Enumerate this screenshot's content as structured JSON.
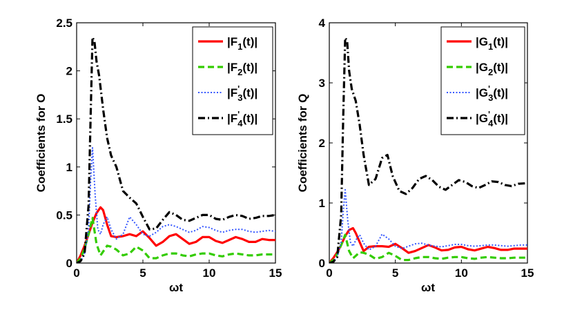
{
  "chart_data": [
    {
      "type": "line",
      "xlabel": "ωt",
      "ylabel": "Coefficients for O",
      "xlim": [
        0,
        15
      ],
      "ylim": [
        0,
        2.5
      ],
      "xticks": [
        0,
        5,
        10,
        15
      ],
      "xtick_labels": [
        "0",
        "5",
        "10",
        "15"
      ],
      "yticks": [
        0,
        0.5,
        1,
        1.5,
        2,
        2.5
      ],
      "ytick_labels": [
        "0",
        "0.5",
        "1",
        "1.5",
        "2",
        "2.5"
      ],
      "grid": false,
      "legend_position": "top-right",
      "series": [
        {
          "name": "|F1(t)|",
          "legend": {
            "base": "|F",
            "sub": "1",
            "sup": "",
            "tail": "(t)|"
          },
          "color": "#ff0000",
          "style": "solid",
          "x": [
            0,
            0.3,
            0.6,
            0.9,
            1.2,
            1.5,
            1.8,
            2.0,
            2.3,
            2.6,
            3.0,
            3.5,
            4.0,
            4.5,
            5.0,
            5.5,
            6.0,
            6.5,
            7.0,
            7.5,
            8.0,
            8.5,
            9.0,
            9.5,
            10.0,
            10.5,
            11.0,
            11.5,
            12.0,
            12.5,
            13.0,
            13.5,
            14.0,
            14.5,
            15.0
          ],
          "values": [
            0,
            0.08,
            0.18,
            0.3,
            0.42,
            0.52,
            0.58,
            0.55,
            0.4,
            0.28,
            0.27,
            0.28,
            0.3,
            0.28,
            0.33,
            0.26,
            0.18,
            0.22,
            0.28,
            0.3,
            0.25,
            0.2,
            0.22,
            0.27,
            0.27,
            0.23,
            0.21,
            0.24,
            0.27,
            0.25,
            0.22,
            0.22,
            0.25,
            0.24,
            0.24
          ]
        },
        {
          "name": "|F2(t)|",
          "legend": {
            "base": "|F",
            "sub": "2",
            "sup": "",
            "tail": "(t)|"
          },
          "color": "#33cc00",
          "style": "dashed",
          "x": [
            0,
            0.3,
            0.6,
            0.9,
            1.2,
            1.5,
            1.8,
            2.0,
            2.3,
            2.6,
            3.0,
            3.5,
            4.0,
            4.5,
            5.0,
            5.5,
            6.0,
            6.5,
            7.0,
            7.5,
            8.0,
            8.5,
            9.0,
            9.5,
            10.0,
            10.5,
            11.0,
            11.5,
            12.0,
            12.5,
            13.0,
            13.5,
            14.0,
            14.5,
            15.0
          ],
          "values": [
            0,
            0.05,
            0.15,
            0.3,
            0.47,
            0.2,
            0.08,
            0.12,
            0.18,
            0.17,
            0.14,
            0.08,
            0.1,
            0.17,
            0.13,
            0.05,
            0.05,
            0.08,
            0.1,
            0.1,
            0.08,
            0.07,
            0.09,
            0.1,
            0.1,
            0.08,
            0.07,
            0.09,
            0.1,
            0.09,
            0.08,
            0.08,
            0.09,
            0.09,
            0.09
          ]
        },
        {
          "name": "|F'3(t)|",
          "legend": {
            "base": "|F",
            "sub": "3",
            "sup": "'",
            "tail": "(t)|"
          },
          "color": "#3355ff",
          "style": "dotted",
          "x": [
            0,
            0.3,
            0.6,
            0.9,
            1.05,
            1.2,
            1.4,
            1.6,
            1.8,
            2.0,
            2.3,
            2.6,
            3.0,
            3.5,
            4.0,
            4.5,
            5.0,
            5.5,
            6.0,
            6.5,
            7.0,
            7.5,
            8.0,
            8.5,
            9.0,
            9.5,
            10.0,
            10.5,
            11.0,
            11.5,
            12.0,
            12.5,
            13.0,
            13.5,
            14.0,
            14.5,
            15.0
          ],
          "values": [
            0,
            0.02,
            0.1,
            0.35,
            0.85,
            1.2,
            0.7,
            0.35,
            0.3,
            0.4,
            0.48,
            0.35,
            0.25,
            0.3,
            0.48,
            0.4,
            0.3,
            0.28,
            0.32,
            0.38,
            0.4,
            0.38,
            0.35,
            0.32,
            0.34,
            0.38,
            0.37,
            0.34,
            0.32,
            0.34,
            0.35,
            0.35,
            0.33,
            0.32,
            0.33,
            0.34,
            0.33
          ]
        },
        {
          "name": "|F'4(t)|",
          "legend": {
            "base": "|F",
            "sub": "4",
            "sup": "'",
            "tail": "(t)|"
          },
          "color": "#000000",
          "style": "dashdot",
          "x": [
            0,
            0.3,
            0.6,
            0.9,
            1.05,
            1.2,
            1.35,
            1.5,
            1.7,
            2.0,
            2.3,
            2.6,
            3.0,
            3.5,
            4.0,
            4.5,
            5.0,
            5.5,
            6.0,
            6.5,
            7.0,
            7.5,
            8.0,
            8.5,
            9.0,
            9.5,
            10.0,
            10.5,
            11.0,
            11.5,
            12.0,
            12.5,
            13.0,
            13.5,
            14.0,
            14.5,
            15.0
          ],
          "values": [
            0,
            0.02,
            0.1,
            0.6,
            1.5,
            2.35,
            2.3,
            2.1,
            1.95,
            1.6,
            1.3,
            1.12,
            1.0,
            0.75,
            0.68,
            0.62,
            0.48,
            0.35,
            0.36,
            0.45,
            0.53,
            0.5,
            0.45,
            0.44,
            0.47,
            0.5,
            0.5,
            0.46,
            0.45,
            0.48,
            0.5,
            0.49,
            0.46,
            0.47,
            0.49,
            0.49,
            0.5
          ]
        }
      ]
    },
    {
      "type": "line",
      "xlabel": "ωt",
      "ylabel": "Coefficients for Q",
      "xlim": [
        0,
        15
      ],
      "ylim": [
        0,
        4
      ],
      "xticks": [
        0,
        5,
        10,
        15
      ],
      "xtick_labels": [
        "0",
        "5",
        "10",
        "15"
      ],
      "yticks": [
        0,
        1,
        2,
        3,
        4
      ],
      "ytick_labels": [
        "0",
        "1",
        "2",
        "3",
        "4"
      ],
      "grid": false,
      "legend_position": "top-right",
      "series": [
        {
          "name": "|G1(t)|",
          "legend": {
            "base": "|G",
            "sub": "1",
            "sup": "",
            "tail": "(t)|"
          },
          "color": "#ff0000",
          "style": "solid",
          "x": [
            0,
            0.3,
            0.6,
            0.9,
            1.2,
            1.5,
            1.8,
            2.0,
            2.3,
            2.6,
            3.0,
            3.5,
            4.0,
            4.5,
            5.0,
            5.5,
            6.0,
            6.5,
            7.0,
            7.5,
            8.0,
            8.5,
            9.0,
            9.5,
            10.0,
            10.5,
            11.0,
            11.5,
            12.0,
            12.5,
            13.0,
            13.5,
            14.0,
            14.5,
            15.0
          ],
          "values": [
            0,
            0.08,
            0.18,
            0.3,
            0.45,
            0.55,
            0.58,
            0.5,
            0.35,
            0.2,
            0.27,
            0.28,
            0.28,
            0.27,
            0.32,
            0.25,
            0.17,
            0.2,
            0.25,
            0.3,
            0.26,
            0.21,
            0.22,
            0.26,
            0.27,
            0.23,
            0.21,
            0.24,
            0.27,
            0.25,
            0.22,
            0.22,
            0.24,
            0.24,
            0.24
          ]
        },
        {
          "name": "|G2(t)|",
          "legend": {
            "base": "|G",
            "sub": "2",
            "sup": "",
            "tail": "(t)|"
          },
          "color": "#33cc00",
          "style": "dashed",
          "x": [
            0,
            0.3,
            0.6,
            0.9,
            1.2,
            1.5,
            1.8,
            2.0,
            2.3,
            2.6,
            3.0,
            3.5,
            4.0,
            4.5,
            5.0,
            5.5,
            6.0,
            6.5,
            7.0,
            7.5,
            8.0,
            8.5,
            9.0,
            9.5,
            10.0,
            10.5,
            11.0,
            11.5,
            12.0,
            12.5,
            13.0,
            13.5,
            14.0,
            14.5,
            15.0
          ],
          "values": [
            0,
            0.05,
            0.15,
            0.3,
            0.47,
            0.2,
            0.08,
            0.12,
            0.18,
            0.17,
            0.14,
            0.07,
            0.1,
            0.17,
            0.12,
            0.05,
            0.05,
            0.08,
            0.1,
            0.1,
            0.08,
            0.07,
            0.09,
            0.1,
            0.1,
            0.08,
            0.07,
            0.09,
            0.1,
            0.09,
            0.08,
            0.08,
            0.09,
            0.09,
            0.09
          ]
        },
        {
          "name": "|G'3(t)|",
          "legend": {
            "base": "|G",
            "sub": "3",
            "sup": "'",
            "tail": "(t)|"
          },
          "color": "#3355ff",
          "style": "dotted",
          "x": [
            0,
            0.3,
            0.6,
            0.9,
            1.05,
            1.2,
            1.4,
            1.6,
            1.8,
            2.0,
            2.3,
            2.6,
            3.0,
            3.5,
            4.0,
            4.5,
            5.0,
            5.5,
            6.0,
            6.5,
            7.0,
            7.5,
            8.0,
            8.5,
            9.0,
            9.5,
            10.0,
            10.5,
            11.0,
            11.5,
            12.0,
            12.5,
            13.0,
            13.5,
            14.0,
            14.5,
            15.0
          ],
          "values": [
            0,
            0.02,
            0.1,
            0.35,
            0.85,
            1.22,
            0.7,
            0.35,
            0.28,
            0.38,
            0.47,
            0.33,
            0.22,
            0.28,
            0.48,
            0.4,
            0.28,
            0.24,
            0.28,
            0.32,
            0.33,
            0.3,
            0.28,
            0.27,
            0.29,
            0.31,
            0.31,
            0.29,
            0.28,
            0.29,
            0.3,
            0.3,
            0.29,
            0.28,
            0.29,
            0.3,
            0.3
          ]
        },
        {
          "name": "|G'4(t)|",
          "legend": {
            "base": "|G",
            "sub": "4",
            "sup": "'",
            "tail": "(t)|"
          },
          "color": "#000000",
          "style": "dashdot",
          "x": [
            0,
            0.3,
            0.6,
            0.9,
            1.05,
            1.2,
            1.35,
            1.5,
            1.7,
            2.0,
            2.3,
            2.6,
            3.0,
            3.5,
            4.0,
            4.4,
            4.8,
            5.3,
            5.8,
            6.3,
            6.8,
            7.3,
            7.8,
            8.3,
            8.8,
            9.3,
            9.8,
            10.3,
            10.8,
            11.3,
            11.8,
            12.3,
            12.8,
            13.3,
            13.8,
            14.3,
            15.0
          ],
          "values": [
            0,
            0.02,
            0.1,
            0.8,
            2.4,
            3.75,
            3.7,
            3.2,
            2.9,
            2.7,
            2.3,
            1.8,
            1.3,
            1.4,
            1.75,
            1.8,
            1.45,
            1.2,
            1.15,
            1.25,
            1.4,
            1.45,
            1.38,
            1.27,
            1.22,
            1.3,
            1.38,
            1.35,
            1.28,
            1.25,
            1.3,
            1.36,
            1.35,
            1.3,
            1.28,
            1.32,
            1.33
          ]
        }
      ]
    }
  ]
}
